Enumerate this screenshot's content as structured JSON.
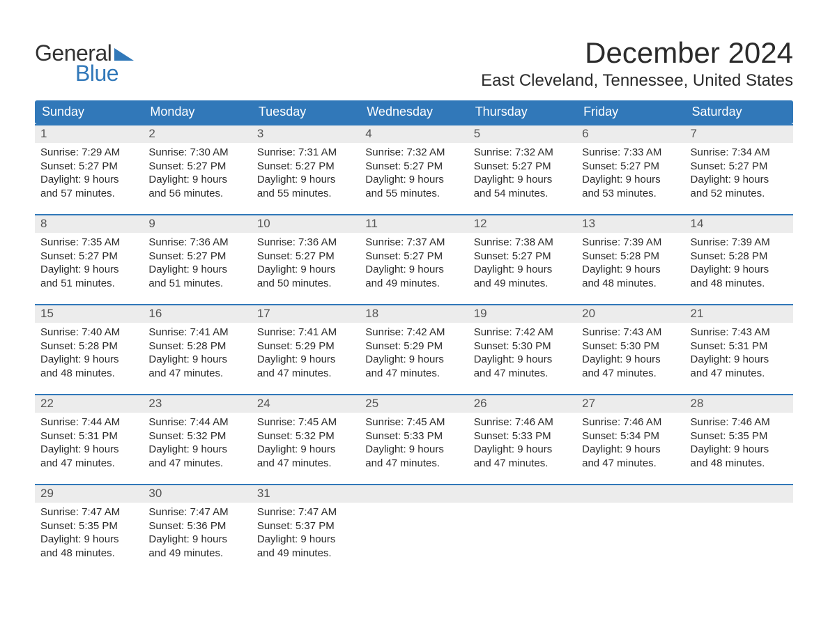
{
  "logo": {
    "word1": "General",
    "word2": "Blue"
  },
  "title": "December 2024",
  "location": "East Cleveland, Tennessee, United States",
  "colors": {
    "blue": "#3178b9",
    "gray_light": "#ececec",
    "text": "#2b2b2b",
    "header_text": "#ffffff"
  },
  "days_of_week": [
    "Sunday",
    "Monday",
    "Tuesday",
    "Wednesday",
    "Thursday",
    "Friday",
    "Saturday"
  ],
  "weeks": [
    {
      "days": [
        {
          "num": "1",
          "sunrise": "7:29 AM",
          "sunset": "5:27 PM",
          "daylight": "9 hours and 57 minutes."
        },
        {
          "num": "2",
          "sunrise": "7:30 AM",
          "sunset": "5:27 PM",
          "daylight": "9 hours and 56 minutes."
        },
        {
          "num": "3",
          "sunrise": "7:31 AM",
          "sunset": "5:27 PM",
          "daylight": "9 hours and 55 minutes."
        },
        {
          "num": "4",
          "sunrise": "7:32 AM",
          "sunset": "5:27 PM",
          "daylight": "9 hours and 55 minutes."
        },
        {
          "num": "5",
          "sunrise": "7:32 AM",
          "sunset": "5:27 PM",
          "daylight": "9 hours and 54 minutes."
        },
        {
          "num": "6",
          "sunrise": "7:33 AM",
          "sunset": "5:27 PM",
          "daylight": "9 hours and 53 minutes."
        },
        {
          "num": "7",
          "sunrise": "7:34 AM",
          "sunset": "5:27 PM",
          "daylight": "9 hours and 52 minutes."
        }
      ]
    },
    {
      "days": [
        {
          "num": "8",
          "sunrise": "7:35 AM",
          "sunset": "5:27 PM",
          "daylight": "9 hours and 51 minutes."
        },
        {
          "num": "9",
          "sunrise": "7:36 AM",
          "sunset": "5:27 PM",
          "daylight": "9 hours and 51 minutes."
        },
        {
          "num": "10",
          "sunrise": "7:36 AM",
          "sunset": "5:27 PM",
          "daylight": "9 hours and 50 minutes."
        },
        {
          "num": "11",
          "sunrise": "7:37 AM",
          "sunset": "5:27 PM",
          "daylight": "9 hours and 49 minutes."
        },
        {
          "num": "12",
          "sunrise": "7:38 AM",
          "sunset": "5:27 PM",
          "daylight": "9 hours and 49 minutes."
        },
        {
          "num": "13",
          "sunrise": "7:39 AM",
          "sunset": "5:28 PM",
          "daylight": "9 hours and 48 minutes."
        },
        {
          "num": "14",
          "sunrise": "7:39 AM",
          "sunset": "5:28 PM",
          "daylight": "9 hours and 48 minutes."
        }
      ]
    },
    {
      "days": [
        {
          "num": "15",
          "sunrise": "7:40 AM",
          "sunset": "5:28 PM",
          "daylight": "9 hours and 48 minutes."
        },
        {
          "num": "16",
          "sunrise": "7:41 AM",
          "sunset": "5:28 PM",
          "daylight": "9 hours and 47 minutes."
        },
        {
          "num": "17",
          "sunrise": "7:41 AM",
          "sunset": "5:29 PM",
          "daylight": "9 hours and 47 minutes."
        },
        {
          "num": "18",
          "sunrise": "7:42 AM",
          "sunset": "5:29 PM",
          "daylight": "9 hours and 47 minutes."
        },
        {
          "num": "19",
          "sunrise": "7:42 AM",
          "sunset": "5:30 PM",
          "daylight": "9 hours and 47 minutes."
        },
        {
          "num": "20",
          "sunrise": "7:43 AM",
          "sunset": "5:30 PM",
          "daylight": "9 hours and 47 minutes."
        },
        {
          "num": "21",
          "sunrise": "7:43 AM",
          "sunset": "5:31 PM",
          "daylight": "9 hours and 47 minutes."
        }
      ]
    },
    {
      "days": [
        {
          "num": "22",
          "sunrise": "7:44 AM",
          "sunset": "5:31 PM",
          "daylight": "9 hours and 47 minutes."
        },
        {
          "num": "23",
          "sunrise": "7:44 AM",
          "sunset": "5:32 PM",
          "daylight": "9 hours and 47 minutes."
        },
        {
          "num": "24",
          "sunrise": "7:45 AM",
          "sunset": "5:32 PM",
          "daylight": "9 hours and 47 minutes."
        },
        {
          "num": "25",
          "sunrise": "7:45 AM",
          "sunset": "5:33 PM",
          "daylight": "9 hours and 47 minutes."
        },
        {
          "num": "26",
          "sunrise": "7:46 AM",
          "sunset": "5:33 PM",
          "daylight": "9 hours and 47 minutes."
        },
        {
          "num": "27",
          "sunrise": "7:46 AM",
          "sunset": "5:34 PM",
          "daylight": "9 hours and 47 minutes."
        },
        {
          "num": "28",
          "sunrise": "7:46 AM",
          "sunset": "5:35 PM",
          "daylight": "9 hours and 48 minutes."
        }
      ]
    },
    {
      "days": [
        {
          "num": "29",
          "sunrise": "7:47 AM",
          "sunset": "5:35 PM",
          "daylight": "9 hours and 48 minutes."
        },
        {
          "num": "30",
          "sunrise": "7:47 AM",
          "sunset": "5:36 PM",
          "daylight": "9 hours and 49 minutes."
        },
        {
          "num": "31",
          "sunrise": "7:47 AM",
          "sunset": "5:37 PM",
          "daylight": "9 hours and 49 minutes."
        },
        null,
        null,
        null,
        null
      ]
    }
  ],
  "labels": {
    "sunrise": "Sunrise: ",
    "sunset": "Sunset: ",
    "daylight": "Daylight: "
  }
}
